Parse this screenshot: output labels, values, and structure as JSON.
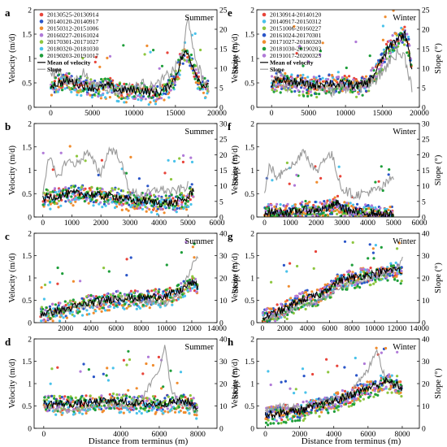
{
  "figure": {
    "xlabel": "Distance from terminus (m)",
    "ylabel_left": "Velocity (m/d)",
    "ylabel_right": "Slope (°)"
  },
  "chart_data": [
    {
      "id": "a",
      "panel_label": "a",
      "season": "Summer",
      "type": "scatter",
      "xlim": [
        -2000,
        20000
      ],
      "xticks": [
        0,
        5000,
        10000,
        15000,
        20000
      ],
      "ylim": [
        0,
        2
      ],
      "yticks": [
        0,
        0.5,
        1,
        1.5,
        2
      ],
      "ylim_right": [
        0,
        25
      ],
      "yticks_right": [
        0,
        5,
        10,
        15,
        20,
        25
      ],
      "legend": {
        "position": "top-left",
        "series": [
          {
            "name": "20130525-20130914",
            "color": "#e8443a"
          },
          {
            "name": "20140120-20140917",
            "color": "#2a55c8"
          },
          {
            "name": "20150312-20151006",
            "color": "#f08c2e"
          },
          {
            "name": "20160227-20161024",
            "color": "#b07ad8"
          },
          {
            "name": "20170301-20171027",
            "color": "#8dc63f"
          },
          {
            "name": "20180320-20181030",
            "color": "#49c2ea"
          },
          {
            "name": "20190203-20191017",
            "color": "#1e9e3a"
          }
        ],
        "mean_label": "Mean of velocity",
        "slope_label": "Slope"
      },
      "mean_velocity": {
        "x": [
          0,
          1000,
          2000,
          3000,
          4000,
          5000,
          6000,
          7000,
          8000,
          9000,
          10000,
          11000,
          12000,
          13000,
          14000,
          15000,
          15500,
          16000,
          16500,
          17000,
          17500,
          18000,
          18500,
          19000
        ],
        "y": [
          0.45,
          0.5,
          0.55,
          0.5,
          0.45,
          0.4,
          0.4,
          0.45,
          0.35,
          0.35,
          0.35,
          0.35,
          0.3,
          0.3,
          0.4,
          0.6,
          0.9,
          1.1,
          1.1,
          0.9,
          0.7,
          0.5,
          0.45,
          0.4
        ]
      },
      "slope": {
        "x": [
          0,
          1000,
          2000,
          3000,
          4000,
          5000,
          6000,
          7000,
          8000,
          9000,
          10000,
          11000,
          12000,
          13000,
          14000,
          15000,
          16000,
          16500,
          17000,
          18000,
          19000
        ],
        "y": [
          8,
          10,
          6,
          7,
          9,
          5,
          6,
          5,
          4,
          5,
          5,
          6,
          5,
          6,
          8,
          10,
          14,
          25,
          15,
          9,
          4
        ]
      }
    },
    {
      "id": "b",
      "panel_label": "b",
      "season": "Summer",
      "type": "scatter",
      "xlim": [
        -300,
        6000
      ],
      "xticks": [
        0,
        1000,
        2000,
        3000,
        4000,
        5000,
        6000
      ],
      "ylim": [
        0,
        2
      ],
      "yticks": [
        0,
        0.5,
        1,
        1.5,
        2
      ],
      "ylim_right": [
        0,
        30
      ],
      "yticks_right": [
        0,
        5,
        10,
        15,
        20,
        25,
        30
      ],
      "mean_velocity": {
        "x": [
          0,
          500,
          1000,
          1500,
          2000,
          2500,
          3000,
          3500,
          4000,
          4500,
          5000,
          5200
        ],
        "y": [
          0.4,
          0.45,
          0.5,
          0.5,
          0.45,
          0.45,
          0.35,
          0.35,
          0.3,
          0.3,
          0.4,
          0.6
        ]
      },
      "slope": {
        "x": [
          0,
          200,
          500,
          800,
          1200,
          1500,
          2000,
          2300,
          2600,
          3000,
          3500,
          4000,
          4500,
          5000
        ],
        "y": [
          8,
          20,
          12,
          18,
          17,
          21,
          14,
          22,
          20,
          8,
          7,
          9,
          8,
          10
        ]
      }
    },
    {
      "id": "c",
      "panel_label": "c",
      "season": "Summer",
      "type": "scatter",
      "xlim": [
        -500,
        14000
      ],
      "xticks": [
        2000,
        4000,
        6000,
        8000,
        10000,
        12000,
        14000
      ],
      "ylim": [
        0,
        2
      ],
      "yticks": [
        0,
        0.5,
        1,
        1.5,
        2
      ],
      "ylim_right": [
        0,
        40
      ],
      "yticks_right": [
        0,
        10,
        20,
        30,
        40
      ],
      "mean_velocity": {
        "x": [
          0,
          2000,
          4000,
          6000,
          8000,
          10000,
          11000,
          12000,
          12500
        ],
        "y": [
          0.2,
          0.3,
          0.45,
          0.55,
          0.55,
          0.6,
          0.7,
          0.9,
          0.8
        ]
      },
      "slope": {
        "x": [
          0,
          2000,
          4000,
          6000,
          8000,
          10000,
          11000,
          12000,
          12500
        ],
        "y": [
          3,
          6,
          8,
          11,
          10,
          9,
          12,
          25,
          30
        ]
      }
    },
    {
      "id": "d",
      "panel_label": "d",
      "season": "Summer",
      "type": "scatter",
      "xlim": [
        -500,
        9000
      ],
      "xticks": [
        0,
        4000,
        6000,
        8000
      ],
      "ylim": [
        0,
        2
      ],
      "yticks": [
        0,
        0.5,
        1,
        1.5,
        2
      ],
      "ylim_right": [
        0,
        40
      ],
      "yticks_right": [
        0,
        10,
        20,
        30,
        40
      ],
      "mean_velocity": {
        "x": [
          0,
          1000,
          2000,
          3000,
          4000,
          5000,
          6000,
          7000,
          7500,
          8000
        ],
        "y": [
          0.55,
          0.55,
          0.55,
          0.6,
          0.6,
          0.55,
          0.55,
          0.6,
          0.6,
          0.45
        ]
      },
      "slope": {
        "x": [
          0,
          1000,
          2000,
          3000,
          4000,
          5000,
          6000,
          6300,
          6600,
          7000,
          8000
        ],
        "y": [
          10,
          8,
          9,
          11,
          10,
          12,
          26,
          38,
          18,
          12,
          8
        ]
      }
    },
    {
      "id": "e",
      "panel_label": "e",
      "season": "Winter",
      "type": "scatter",
      "xlim": [
        -2000,
        20000
      ],
      "xticks": [
        0,
        5000,
        10000,
        15000,
        20000
      ],
      "ylim": [
        0,
        2
      ],
      "yticks": [
        0,
        0.5,
        1,
        1.5,
        2
      ],
      "ylim_right": [
        0,
        25
      ],
      "yticks_right": [
        0,
        5,
        10,
        15,
        20,
        25
      ],
      "legend": {
        "position": "top-left",
        "series": [
          {
            "name": "20130914-20140120",
            "color": "#e8443a"
          },
          {
            "name": "20140917-20150312",
            "color": "#49c2ea"
          },
          {
            "name": "20151006-20160227",
            "color": "#8dc63f"
          },
          {
            "name": "20161024-20170301",
            "color": "#2a55c8"
          },
          {
            "name": "20171027-20180320",
            "color": "#f08c2e"
          },
          {
            "name": "20181030-20190203",
            "color": "#1e9e3a"
          },
          {
            "name": "20191017-20200325",
            "color": "#b07ad8"
          }
        ],
        "mean_label": "Mean of velocity",
        "slope_label": "Slope"
      },
      "mean_velocity": {
        "x": [
          0,
          1000,
          2000,
          3000,
          4000,
          5000,
          6000,
          7000,
          8000,
          9000,
          10000,
          11000,
          12000,
          13000,
          14000,
          15000,
          16000,
          17000,
          18000,
          18500,
          19000
        ],
        "y": [
          0.5,
          0.55,
          0.55,
          0.5,
          0.5,
          0.45,
          0.45,
          0.5,
          0.5,
          0.45,
          0.5,
          0.45,
          0.45,
          0.5,
          0.7,
          1.0,
          1.25,
          1.4,
          1.5,
          1.3,
          0.7
        ]
      },
      "slope": {
        "x": [
          0,
          1000,
          2000,
          3000,
          4000,
          5000,
          6000,
          7000,
          8000,
          9000,
          10000,
          11000,
          12000,
          13000,
          14000,
          15000,
          16000,
          17000,
          18000,
          19000
        ],
        "y": [
          6,
          9,
          5,
          6,
          7,
          6,
          5,
          5,
          4,
          5,
          5,
          6,
          5,
          6,
          7,
          9,
          12,
          14,
          13,
          5
        ]
      }
    },
    {
      "id": "f",
      "panel_label": "f",
      "season": "Winter",
      "type": "scatter",
      "xlim": [
        -300,
        6000
      ],
      "xticks": [
        0,
        1000,
        2000,
        3000,
        4000,
        5000,
        6000
      ],
      "ylim": [
        0,
        2
      ],
      "yticks": [
        0,
        0.5,
        1,
        1.5,
        2
      ],
      "ylim_right": [
        0,
        30
      ],
      "yticks_right": [
        0,
        5,
        10,
        15,
        20,
        25,
        30
      ],
      "mean_velocity": {
        "x": [
          0,
          500,
          1000,
          1500,
          2000,
          2500,
          2800,
          3000,
          3500,
          4000,
          4500,
          5000
        ],
        "y": [
          0.1,
          0.1,
          0.1,
          0.15,
          0.15,
          0.2,
          0.3,
          0.2,
          0.1,
          0.1,
          0.05,
          0.05
        ]
      },
      "slope": {
        "x": [
          0,
          200,
          500,
          800,
          1200,
          1500,
          2000,
          2300,
          2600,
          3000,
          3500,
          4000,
          4500,
          5000
        ],
        "y": [
          7,
          17,
          12,
          16,
          17,
          22,
          14,
          19,
          20,
          9,
          7,
          8,
          9,
          13
        ]
      }
    },
    {
      "id": "g",
      "panel_label": "g",
      "season": "Winter",
      "type": "scatter",
      "xlim": [
        -500,
        14000
      ],
      "xticks": [
        0,
        2000,
        4000,
        6000,
        8000,
        10000,
        12000,
        14000
      ],
      "ylim": [
        0,
        2
      ],
      "yticks": [
        0,
        0.5,
        1,
        1.5,
        2
      ],
      "ylim_right": [
        0,
        40
      ],
      "yticks_right": [
        0,
        10,
        20,
        30,
        40
      ],
      "mean_velocity": {
        "x": [
          0,
          1000,
          2000,
          3000,
          4000,
          5000,
          6000,
          7000,
          8000,
          9000,
          10000,
          11000,
          12000,
          12500
        ],
        "y": [
          0.1,
          0.2,
          0.3,
          0.45,
          0.55,
          0.6,
          0.8,
          0.95,
          1.0,
          1.05,
          1.1,
          1.15,
          1.2,
          1.1
        ]
      },
      "slope": {
        "x": [
          0,
          1000,
          2000,
          3000,
          4000,
          5000,
          6000,
          7000,
          8000,
          9000,
          10000,
          11000,
          12000,
          12500
        ],
        "y": [
          2,
          3,
          4,
          7,
          8,
          10,
          13,
          16,
          18,
          19,
          20,
          22,
          25,
          28
        ]
      }
    },
    {
      "id": "h",
      "panel_label": "h",
      "season": "Winter",
      "type": "scatter",
      "xlim": [
        -500,
        9000
      ],
      "xticks": [
        0,
        2000,
        4000,
        6000,
        8000
      ],
      "ylim": [
        0,
        2
      ],
      "yticks": [
        0,
        0.5,
        1,
        1.5,
        2
      ],
      "ylim_right": [
        0,
        40
      ],
      "yticks_right": [
        0,
        10,
        20,
        30,
        40
      ],
      "mean_velocity": {
        "x": [
          0,
          1000,
          2000,
          3000,
          4000,
          5000,
          6000,
          7000,
          7500,
          8000
        ],
        "y": [
          0.3,
          0.35,
          0.4,
          0.5,
          0.6,
          0.75,
          0.9,
          1.05,
          1.0,
          0.9
        ]
      },
      "slope": {
        "x": [
          0,
          1000,
          2000,
          3000,
          4000,
          5000,
          6000,
          6500,
          7000,
          8000
        ],
        "y": [
          8,
          10,
          9,
          12,
          13,
          16,
          26,
          36,
          22,
          18
        ]
      }
    }
  ]
}
